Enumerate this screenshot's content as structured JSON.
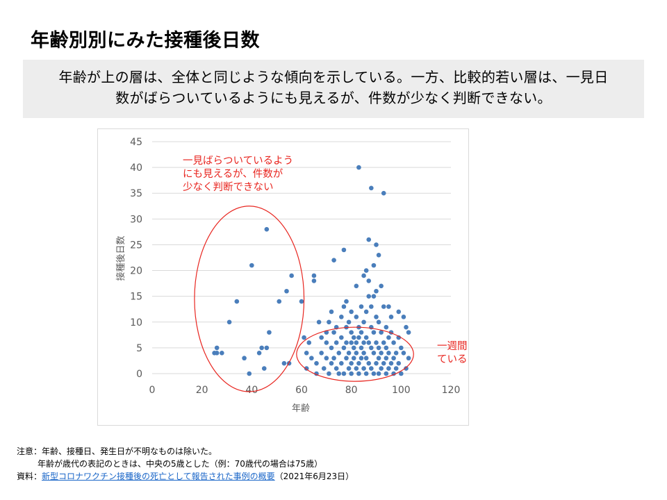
{
  "title": "年齢別別にみた接種後日数",
  "summary": {
    "line1": "年齢が上の層は、全体と同じような傾向を示している。一方、比較的若い層は、一見日",
    "line2": "数がばらついているようにも見えるが、件数が少なく判断できない。"
  },
  "chart_data": {
    "type": "scatter",
    "xlabel": "年齢",
    "ylabel": "接種後日数",
    "xlim": [
      0,
      120
    ],
    "ylim": [
      0,
      45
    ],
    "xticks": [
      0,
      20,
      40,
      60,
      80,
      100,
      120
    ],
    "yticks": [
      0,
      5,
      10,
      15,
      20,
      25,
      30,
      35,
      40,
      45
    ],
    "grid": "horizontal",
    "legend": "none",
    "marker_color": "#4a7ebb",
    "series": [
      {
        "points": [
          [
            25,
            4
          ],
          [
            26,
            5
          ],
          [
            26,
            4
          ],
          [
            28,
            4
          ],
          [
            31,
            10
          ],
          [
            34,
            14
          ],
          [
            37,
            3
          ],
          [
            39,
            0
          ],
          [
            40,
            21
          ],
          [
            43,
            4
          ],
          [
            44,
            5
          ],
          [
            45,
            1
          ],
          [
            46,
            5
          ],
          [
            46,
            28
          ],
          [
            47,
            8
          ],
          [
            51,
            14
          ],
          [
            53,
            2
          ],
          [
            54,
            16
          ],
          [
            55,
            2
          ],
          [
            56,
            19
          ],
          [
            60,
            14
          ],
          [
            61,
            7
          ],
          [
            62,
            4
          ],
          [
            62,
            1
          ],
          [
            63,
            6
          ],
          [
            64,
            3
          ],
          [
            65,
            19
          ],
          [
            65,
            18
          ],
          [
            66,
            2
          ],
          [
            66,
            0
          ],
          [
            67,
            10
          ],
          [
            68,
            4
          ],
          [
            68,
            7
          ],
          [
            69,
            1
          ],
          [
            70,
            8
          ],
          [
            70,
            6
          ],
          [
            70,
            3
          ],
          [
            71,
            10
          ],
          [
            71,
            0
          ],
          [
            72,
            12
          ],
          [
            72,
            5
          ],
          [
            72,
            2
          ],
          [
            73,
            22
          ],
          [
            73,
            8
          ],
          [
            73,
            3
          ],
          [
            74,
            9
          ],
          [
            74,
            6
          ],
          [
            74,
            1
          ],
          [
            75,
            4
          ],
          [
            75,
            0
          ],
          [
            76,
            11
          ],
          [
            76,
            7
          ],
          [
            76,
            2
          ],
          [
            77,
            24
          ],
          [
            77,
            13
          ],
          [
            77,
            5
          ],
          [
            77,
            0
          ],
          [
            78,
            14
          ],
          [
            78,
            9
          ],
          [
            78,
            6
          ],
          [
            78,
            3
          ],
          [
            79,
            10
          ],
          [
            79,
            4
          ],
          [
            79,
            1
          ],
          [
            80,
            12
          ],
          [
            80,
            8
          ],
          [
            80,
            6
          ],
          [
            80,
            2
          ],
          [
            80,
            0
          ],
          [
            81,
            7
          ],
          [
            81,
            5
          ],
          [
            81,
            3
          ],
          [
            82,
            17
          ],
          [
            82,
            11
          ],
          [
            82,
            6
          ],
          [
            82,
            4
          ],
          [
            82,
            1
          ],
          [
            83,
            40
          ],
          [
            83,
            9
          ],
          [
            83,
            7
          ],
          [
            83,
            2
          ],
          [
            83,
            0
          ],
          [
            84,
            13
          ],
          [
            84,
            8
          ],
          [
            84,
            5
          ],
          [
            84,
            3
          ],
          [
            85,
            19
          ],
          [
            85,
            10
          ],
          [
            85,
            6
          ],
          [
            85,
            4
          ],
          [
            85,
            1
          ],
          [
            86,
            20
          ],
          [
            86,
            12
          ],
          [
            86,
            7
          ],
          [
            86,
            3
          ],
          [
            86,
            0
          ],
          [
            87,
            26
          ],
          [
            87,
            18
          ],
          [
            87,
            15
          ],
          [
            87,
            6
          ],
          [
            87,
            2
          ],
          [
            88,
            36
          ],
          [
            88,
            13
          ],
          [
            88,
            9
          ],
          [
            88,
            5
          ],
          [
            88,
            1
          ],
          [
            89,
            21
          ],
          [
            89,
            15
          ],
          [
            89,
            8
          ],
          [
            89,
            4
          ],
          [
            89,
            0
          ],
          [
            90,
            25
          ],
          [
            90,
            16
          ],
          [
            90,
            11
          ],
          [
            90,
            6
          ],
          [
            90,
            2
          ],
          [
            91,
            23
          ],
          [
            91,
            10
          ],
          [
            91,
            5
          ],
          [
            91,
            3
          ],
          [
            91,
            0
          ],
          [
            92,
            17
          ],
          [
            92,
            8
          ],
          [
            92,
            4
          ],
          [
            92,
            1
          ],
          [
            93,
            35
          ],
          [
            93,
            13
          ],
          [
            93,
            6
          ],
          [
            93,
            2
          ],
          [
            94,
            9
          ],
          [
            94,
            5
          ],
          [
            94,
            3
          ],
          [
            94,
            0
          ],
          [
            95,
            13
          ],
          [
            95,
            7
          ],
          [
            95,
            4
          ],
          [
            95,
            1
          ],
          [
            96,
            11
          ],
          [
            96,
            8
          ],
          [
            96,
            2
          ],
          [
            97,
            6
          ],
          [
            97,
            3
          ],
          [
            97,
            0
          ],
          [
            98,
            4
          ],
          [
            98,
            1
          ],
          [
            99,
            12
          ],
          [
            99,
            7
          ],
          [
            99,
            2
          ],
          [
            100,
            5
          ],
          [
            100,
            0
          ],
          [
            101,
            11
          ],
          [
            101,
            4
          ],
          [
            102,
            9
          ],
          [
            102,
            1
          ],
          [
            103,
            8
          ],
          [
            103,
            3
          ]
        ]
      }
    ],
    "annotations": [
      {
        "lines": [
          "一見ばらついているよう",
          "にも見えるが、件数が",
          "少なく判断できない"
        ],
        "color": "#e8251f"
      },
      {
        "lines": [
          "一週間以内にかたまっ",
          "ていることがわかる"
        ],
        "color": "#e8251f"
      }
    ],
    "highlight_ellipses": [
      {
        "x_range": [
          17,
          61
        ],
        "y_range": [
          -3.5,
          32.5
        ],
        "color": "#e8251f"
      },
      {
        "x_range": [
          58,
          105
        ],
        "y_range": [
          -1.5,
          9
        ],
        "color": "#e8251f"
      }
    ]
  },
  "notes": {
    "line1": "注意：年齢、接種日、発生日が不明なものは除いた。",
    "line2": "年齢が歳代の表記のときは、中央の5歳とした（例：70歳代の場合は75歳）",
    "source_prefix": "資料：",
    "source_link": "新型コロナワクチン接種後の死亡として報告された事例の概要",
    "source_suffix": "（2021年6月23日）"
  }
}
